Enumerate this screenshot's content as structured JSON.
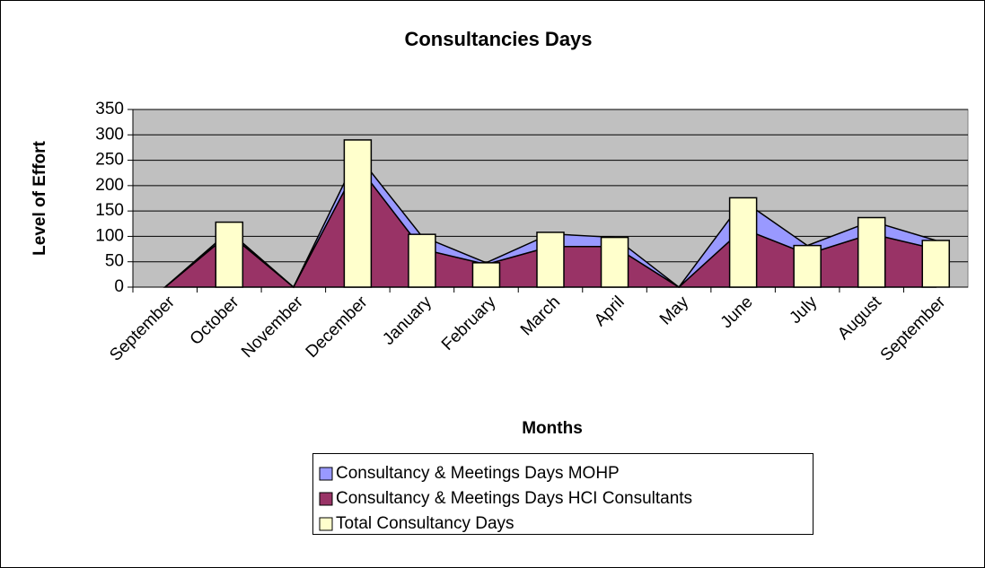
{
  "chart_data": {
    "type": "area",
    "title": "Consultancies Days",
    "x_label": "Months",
    "y_label": "Level of Effort",
    "categories": [
      "September",
      "October",
      "November",
      "December",
      "January",
      "February",
      "March",
      "April",
      "May",
      "June",
      "July",
      "August",
      "September"
    ],
    "series": [
      {
        "name": "Consultancy & Meetings Days MOHP",
        "color": "#9999ff",
        "type": "area",
        "values": [
          0,
          5,
          0,
          20,
          25,
          3,
          25,
          18,
          0,
          55,
          17,
          25,
          17
        ]
      },
      {
        "name": "Consultancy & Meetings Days HCI Consultants",
        "color": "#993366",
        "type": "area",
        "values": [
          0,
          105,
          0,
          240,
          75,
          45,
          80,
          80,
          0,
          115,
          65,
          105,
          75
        ]
      },
      {
        "name": "Total Consultancy Days",
        "color": "#ffffcc",
        "type": "bar",
        "values": [
          0,
          128,
          0,
          290,
          104,
          48,
          108,
          98,
          0,
          176,
          82,
          137,
          92
        ]
      }
    ],
    "ylim": [
      0,
      350
    ],
    "yticks": [
      0,
      50,
      100,
      150,
      200,
      250,
      300,
      350
    ],
    "grid": true,
    "plot_background": "#c0c0c0"
  }
}
